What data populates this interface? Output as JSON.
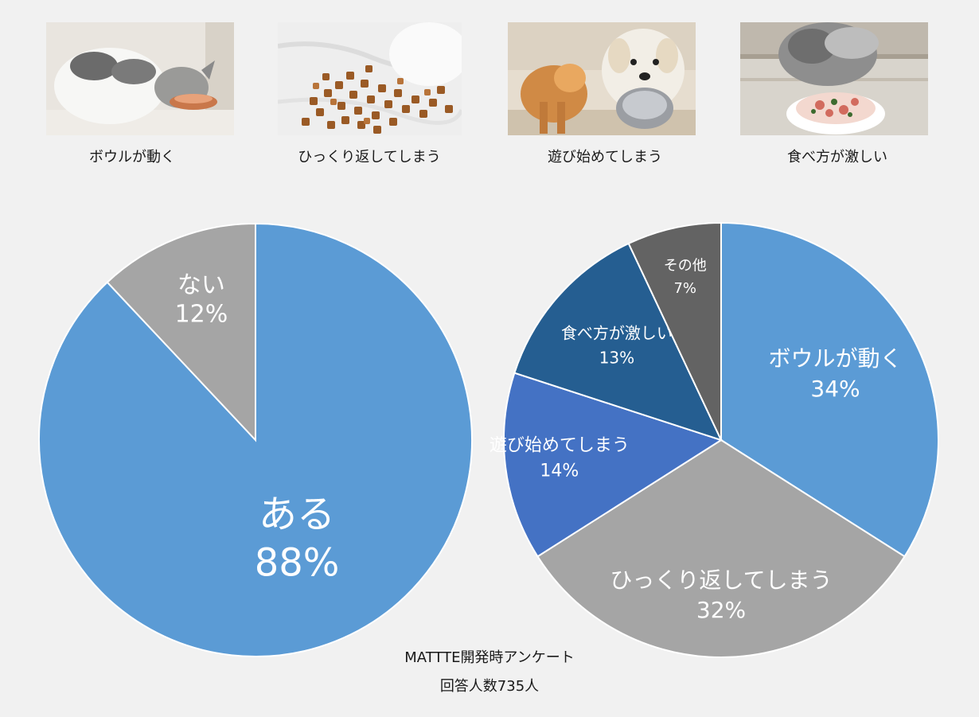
{
  "photos": [
    {
      "caption": "ボウルが動く",
      "image": "cat-eating-from-bowl"
    },
    {
      "caption": "ひっくり返してしまう",
      "image": "spilled-kibble"
    },
    {
      "caption": "遊び始めてしまう",
      "image": "dogs-with-bowl"
    },
    {
      "caption": "食べ方が激しい",
      "image": "cat-eating-food"
    }
  ],
  "source": {
    "line1": "MATTTE開発時アンケート",
    "line2": "回答人数735人"
  },
  "colors": {
    "blue": "#5b9bd5",
    "gray": "#a5a5a5",
    "royal": "#4472c4",
    "navy": "#255e91",
    "dark": "#636363"
  },
  "chart_data": [
    {
      "type": "pie",
      "categories": [
        "ある",
        "ない"
      ],
      "values": [
        88,
        12
      ],
      "labels": [
        "88%",
        "12%"
      ],
      "colors": [
        "#5b9bd5",
        "#a5a5a5"
      ]
    },
    {
      "type": "pie",
      "categories": [
        "ボウルが動く",
        "ひっくり返してしまう",
        "遊び始めてしまう",
        "食べ方が激しい",
        "その他"
      ],
      "values": [
        34,
        32,
        14,
        13,
        7
      ],
      "labels": [
        "34%",
        "32%",
        "14%",
        "13%",
        "7%"
      ],
      "colors": [
        "#5b9bd5",
        "#a5a5a5",
        "#4472c4",
        "#255e91",
        "#636363"
      ]
    }
  ]
}
